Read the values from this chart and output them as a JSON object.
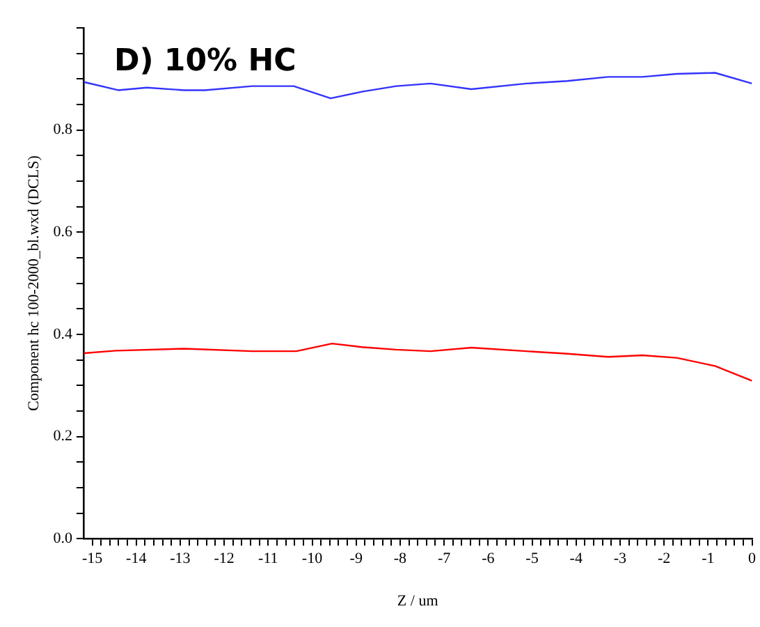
{
  "chart_data": {
    "type": "line",
    "title": "D) 10% HC",
    "xlabel": "Z / um",
    "ylabel": "Component hc 100-2000_bl.wxd (DCLS)",
    "xlim": [
      -15.2,
      0
    ],
    "ylim": [
      0,
      1
    ],
    "xticks": [
      -15,
      {
        "value": -14.8,
        "label": null
      },
      {
        "value": -14.6,
        "label": null
      },
      {
        "value": -14.4,
        "label": null
      },
      {
        "value": -14.2,
        "label": null
      },
      -14,
      {
        "value": -13.8,
        "label": null
      },
      {
        "value": -13.6,
        "label": null
      },
      {
        "value": -13.4,
        "label": null
      },
      {
        "value": -13.2,
        "label": null
      },
      -13,
      {
        "value": -12.8,
        "label": null
      },
      {
        "value": -12.6,
        "label": null
      },
      {
        "value": -12.4,
        "label": null
      },
      {
        "value": -12.2,
        "label": null
      },
      -12,
      {
        "value": -11.8,
        "label": null
      },
      {
        "value": -11.6,
        "label": null
      },
      {
        "value": -11.4,
        "label": null
      },
      {
        "value": -11.2,
        "label": null
      },
      -11,
      {
        "value": -10.8,
        "label": null
      },
      {
        "value": -10.6,
        "label": null
      },
      {
        "value": -10.4,
        "label": null
      },
      {
        "value": -10.2,
        "label": null
      },
      -10,
      {
        "value": -9.8,
        "label": null
      },
      {
        "value": -9.6,
        "label": null
      },
      {
        "value": -9.4,
        "label": null
      },
      {
        "value": -9.2,
        "label": null
      },
      -9,
      {
        "value": -8.8,
        "label": null
      },
      {
        "value": -8.6,
        "label": null
      },
      {
        "value": -8.4,
        "label": null
      },
      {
        "value": -8.2,
        "label": null
      },
      -8,
      {
        "value": -7.8,
        "label": null
      },
      {
        "value": -7.6,
        "label": null
      },
      {
        "value": -7.4,
        "label": null
      },
      {
        "value": -7.2,
        "label": null
      },
      -7,
      {
        "value": -6.8,
        "label": null
      },
      {
        "value": -6.6,
        "label": null
      },
      {
        "value": -6.4,
        "label": null
      },
      {
        "value": -6.2,
        "label": null
      },
      -6,
      {
        "value": -5.8,
        "label": null
      },
      {
        "value": -5.6,
        "label": null
      },
      {
        "value": -5.4,
        "label": null
      },
      {
        "value": -5.2,
        "label": null
      },
      -5,
      {
        "value": -4.8,
        "label": null
      },
      {
        "value": -4.6,
        "label": null
      },
      {
        "value": -4.4,
        "label": null
      },
      {
        "value": -4.2,
        "label": null
      },
      -4,
      {
        "value": -3.8,
        "label": null
      },
      {
        "value": -3.6,
        "label": null
      },
      {
        "value": -3.4,
        "label": null
      },
      {
        "value": -3.2,
        "label": null
      },
      -3,
      {
        "value": -2.8,
        "label": null
      },
      {
        "value": -2.6,
        "label": null
      },
      {
        "value": -2.4,
        "label": null
      },
      {
        "value": -2.2,
        "label": null
      },
      -2,
      {
        "value": -1.8,
        "label": null
      },
      {
        "value": -1.6,
        "label": null
      },
      {
        "value": -1.4,
        "label": null
      },
      {
        "value": -1.2,
        "label": null
      },
      -1,
      {
        "value": -0.8,
        "label": null
      },
      {
        "value": -0.6,
        "label": null
      },
      {
        "value": -0.4,
        "label": null
      },
      {
        "value": -0.2,
        "label": null
      },
      0
    ],
    "yticks": [
      {
        "value": 0,
        "label": "0.0"
      },
      {
        "value": 0.05,
        "label": null
      },
      {
        "value": 0.1,
        "label": null
      },
      {
        "value": 0.15,
        "label": null
      },
      0.2,
      {
        "value": 0.25,
        "label": null
      },
      {
        "value": 0.3,
        "label": null
      },
      {
        "value": 0.35,
        "label": null
      },
      0.4,
      {
        "value": 0.45,
        "label": null
      },
      {
        "value": 0.5,
        "label": null
      },
      {
        "value": 0.55,
        "label": null
      },
      0.6,
      {
        "value": 0.65,
        "label": null
      },
      {
        "value": 0.7,
        "label": null
      },
      {
        "value": 0.75,
        "label": null
      },
      0.8,
      {
        "value": 0.85,
        "label": null
      },
      {
        "value": 0.9,
        "label": null
      },
      {
        "value": 0.95,
        "label": null
      },
      {
        "value": 1,
        "label": null
      }
    ],
    "grid": false,
    "legend": false,
    "marker": "none",
    "line_style": "solid",
    "series": [
      {
        "color": "#3333ff",
        "x": [
          -15.19,
          -14.41,
          -13.76,
          -12.91,
          -12.44,
          -11.36,
          -10.42,
          -9.58,
          -8.87,
          -8.09,
          -7.31,
          -6.38,
          -5.13,
          -4.2,
          -3.27,
          -2.49,
          -1.71,
          -0.84,
          0
        ],
        "values": [
          0.894,
          0.878,
          0.883,
          0.878,
          0.878,
          0.886,
          0.886,
          0.862,
          0.875,
          0.886,
          0.891,
          0.88,
          0.891,
          0.896,
          0.904,
          0.904,
          0.91,
          0.912,
          0.891
        ]
      },
      {
        "color": "#ff0000",
        "x": [
          -15.19,
          -14.47,
          -12.91,
          -11.36,
          -10.36,
          -9.55,
          -8.87,
          -8.09,
          -7.31,
          -6.38,
          -5.13,
          -4.2,
          -3.27,
          -2.49,
          -1.71,
          -0.84,
          0
        ],
        "values": [
          0.363,
          0.368,
          0.372,
          0.367,
          0.367,
          0.382,
          0.375,
          0.37,
          0.367,
          0.374,
          0.367,
          0.362,
          0.356,
          0.359,
          0.354,
          0.338,
          0.309
        ]
      }
    ]
  }
}
